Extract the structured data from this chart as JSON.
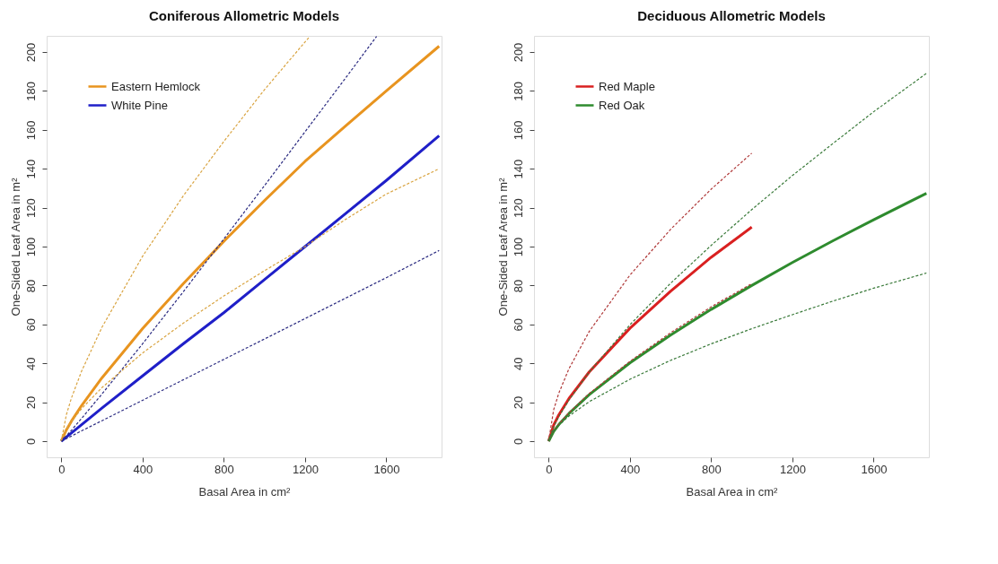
{
  "chart_data": [
    {
      "type": "line",
      "title": "Coniferous Allometric Models",
      "xlabel": "Basal Area in cm²",
      "ylabel": "One-Sided Leaf Area in m²",
      "xlim": [
        -72,
        1872
      ],
      "ylim": [
        -8.3,
        208.3
      ],
      "xticks": [
        0,
        400,
        800,
        1200,
        1600
      ],
      "yticks": [
        0,
        20,
        40,
        60,
        80,
        100,
        120,
        140,
        160,
        180,
        200
      ],
      "grid": false,
      "legend": "top left",
      "marker": "none",
      "x": [
        0,
        25,
        50,
        100,
        200,
        400,
        600,
        800,
        1000,
        1200,
        1400,
        1600,
        1860
      ],
      "series": [
        {
          "name": "Eastern Hemlock",
          "color": "#e8941f",
          "line_style": "solid",
          "values": [
            0,
            5.8,
            10.3,
            18.3,
            32.5,
            57.8,
            80.9,
            102.7,
            123.6,
            143.8,
            162,
            180,
            203
          ]
        },
        {
          "name": "White Pine",
          "color": "#1f1fc8",
          "line_style": "solid",
          "values": [
            0,
            2.1,
            4.2,
            8.5,
            17,
            33.5,
            50,
            66,
            83,
            100,
            117,
            134,
            157
          ]
        },
        {
          "x": [
            0,
            25,
            50,
            100,
            200,
            400,
            600,
            800,
            1000,
            1223
          ],
          "color": "#d9a441",
          "line_style": "dashed",
          "values": [
            0,
            13.6,
            22.2,
            36,
            58.5,
            95,
            126,
            154,
            180.6,
            208
          ]
        },
        {
          "x": [
            0,
            25,
            50,
            100,
            200,
            400,
            600,
            800,
            1000,
            1200,
            1400,
            1552
          ],
          "color": "#2a2a80",
          "line_style": "dashed",
          "values": [
            0,
            2.7,
            5.6,
            11.7,
            24.2,
            50,
            76.7,
            103.9,
            131.3,
            159,
            186.7,
            208
          ]
        },
        {
          "color": "#d9a441",
          "line_style": "dashed",
          "values": [
            0,
            6.2,
            10.1,
            16.7,
            27.5,
            45.3,
            60.6,
            74.6,
            87.6,
            100,
            114,
            127,
            140
          ]
        },
        {
          "color": "#2a2a80",
          "line_style": "dashed",
          "values": [
            0,
            1.3,
            2.6,
            5.3,
            10.5,
            21,
            31.5,
            42,
            52.5,
            63,
            73.5,
            84,
            98
          ]
        }
      ]
    },
    {
      "type": "line",
      "title": "Deciduous Allometric Models",
      "xlabel": "Basal Area in cm²",
      "ylabel": "One-Sided Leaf Area in m²",
      "xlim": [
        -72,
        1872
      ],
      "ylim": [
        -8.3,
        208.3
      ],
      "xticks": [
        0,
        400,
        800,
        1200,
        1600
      ],
      "yticks": [
        0,
        20,
        40,
        60,
        80,
        100,
        120,
        140,
        160,
        180,
        200
      ],
      "grid": false,
      "legend": "top left",
      "marker": "none",
      "x": [
        0,
        25,
        50,
        100,
        200,
        400,
        600,
        800,
        1000,
        1200,
        1400,
        1600,
        1860
      ],
      "series": [
        {
          "name": "Red Maple",
          "x": [
            0,
            25,
            50,
            100,
            200,
            400,
            600,
            800,
            1000
          ],
          "color": "#d92020",
          "line_style": "solid",
          "values": [
            0,
            8.3,
            13.5,
            21.9,
            35.6,
            58,
            77,
            94.5,
            110
          ]
        },
        {
          "name": "Red Oak",
          "color": "#2e8b2e",
          "line_style": "solid",
          "values": [
            0,
            5,
            8.5,
            14.2,
            23.9,
            40.2,
            54.5,
            67.7,
            80,
            91.8,
            103,
            113.8,
            127.4
          ]
        },
        {
          "x": [
            0,
            25,
            50,
            100,
            200,
            400,
            600,
            800,
            1000
          ],
          "color": "#b03a3a",
          "line_style": "dashed",
          "values": [
            0,
            16.2,
            24.6,
            37.2,
            56.4,
            85.3,
            108.8,
            129.5,
            148
          ]
        },
        {
          "x": [
            0,
            25,
            50,
            100,
            200,
            400,
            600,
            800,
            1000
          ],
          "color": "#b03a3a",
          "line_style": "dashed",
          "values": [
            0,
            5.3,
            8.8,
            14.6,
            24.5,
            41,
            55.7,
            69,
            81
          ]
        },
        {
          "color": "#3a7a3a",
          "line_style": "dashed",
          "values": [
            0,
            7.5,
            12.6,
            21.1,
            35.6,
            59.8,
            81.1,
            100.6,
            119,
            136.5,
            153,
            169.3,
            189
          ]
        },
        {
          "color": "#3a7a3a",
          "line_style": "dashed",
          "values": [
            0,
            5.3,
            8.2,
            12.9,
            20.3,
            31.8,
            41.5,
            50,
            57.8,
            65,
            72,
            78.6,
            86.4
          ]
        }
      ]
    }
  ]
}
